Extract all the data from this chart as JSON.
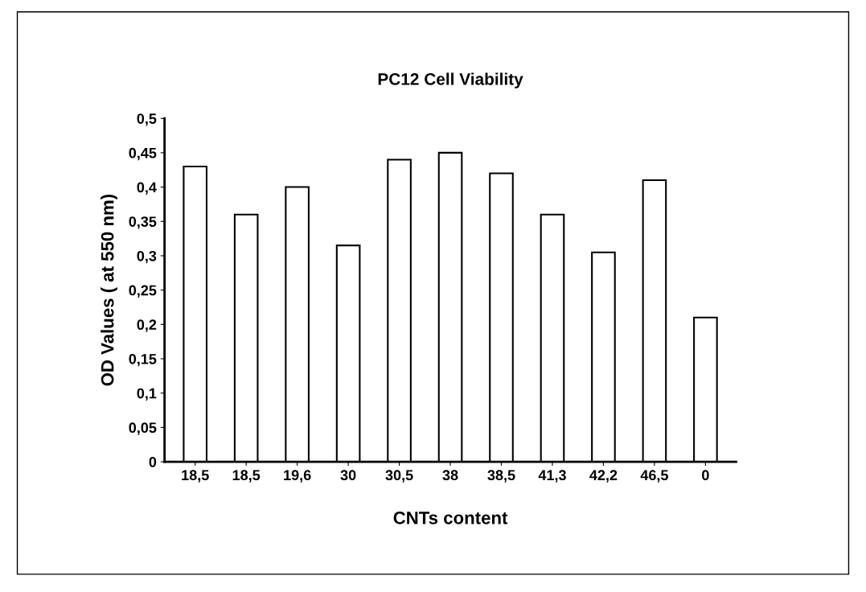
{
  "chart_data": {
    "type": "bar",
    "title": "PC12 Cell Viability",
    "xlabel": "CNTs content",
    "ylabel": "OD Values ( at 550 nm)",
    "categories": [
      "18,5",
      "18,5",
      "19,6",
      "30",
      "30,5",
      "38",
      "38,5",
      "41,3",
      "42,2",
      "46,5",
      "0"
    ],
    "values": [
      0.43,
      0.36,
      0.4,
      0.315,
      0.44,
      0.45,
      0.42,
      0.36,
      0.305,
      0.41,
      0.21
    ],
    "color": "#ffffff",
    "ylim": [
      0,
      0.5
    ],
    "yticks": [
      {
        "value": 0,
        "label": "0"
      },
      {
        "value": 0.05,
        "label": "0,05"
      },
      {
        "value": 0.1,
        "label": "0,1"
      },
      {
        "value": 0.15,
        "label": "0,15"
      },
      {
        "value": 0.2,
        "label": "0,2"
      },
      {
        "value": 0.25,
        "label": "0,25"
      },
      {
        "value": 0.3,
        "label": "0,3"
      },
      {
        "value": 0.35,
        "label": "0,35"
      },
      {
        "value": 0.4,
        "label": "0,4"
      },
      {
        "value": 0.45,
        "label": "0,45"
      },
      {
        "value": 0.5,
        "label": "0,5"
      }
    ],
    "grid": false
  }
}
